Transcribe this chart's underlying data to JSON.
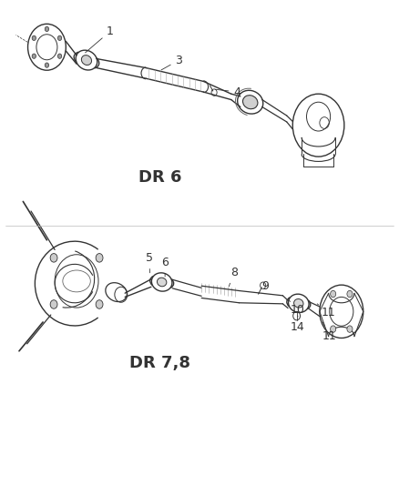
{
  "background_color": "#ffffff",
  "diagram1_label": "DR 6",
  "diagram2_label": "DR 7,8",
  "line_color": "#333333",
  "label_fontsize": 9,
  "diagram_label_fontsize": 13,
  "figsize": [
    4.38,
    5.33
  ],
  "dpi": 100
}
